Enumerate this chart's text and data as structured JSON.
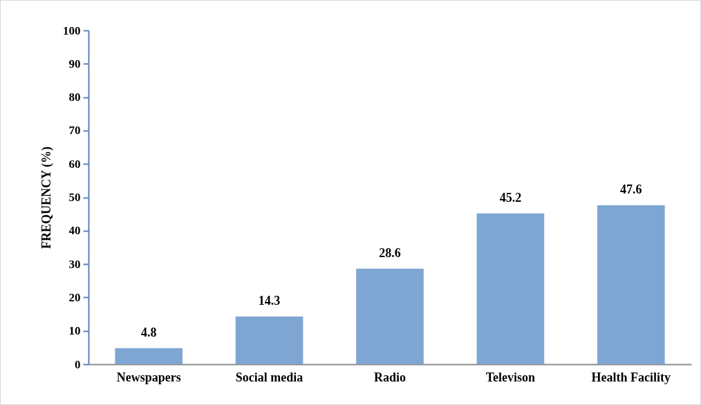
{
  "chart_data": {
    "type": "bar",
    "ylabel": "FREQUENCY  (%)",
    "categories": [
      "Newspapers",
      "Social media",
      "Radio",
      "Televison",
      "Health Facility"
    ],
    "values": [
      4.8,
      14.3,
      28.6,
      45.2,
      47.6
    ],
    "color": "#7fa6d3",
    "ylim": [
      0,
      100
    ],
    "yticks": [
      0,
      10,
      20,
      30,
      40,
      50,
      60,
      70,
      80,
      90,
      100
    ],
    "data_labels": true
  }
}
